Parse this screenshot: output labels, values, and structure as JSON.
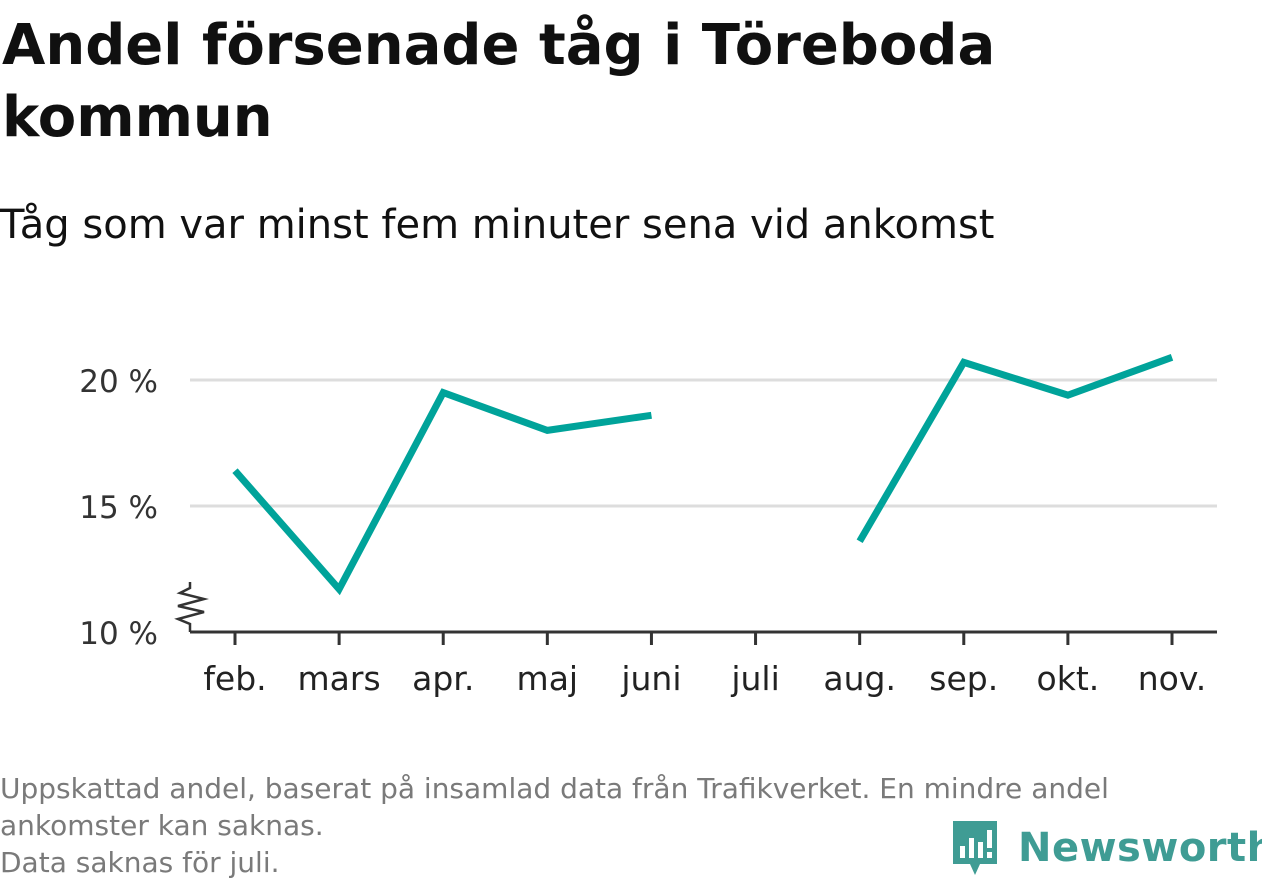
{
  "title": "Andel försenade tåg i Töreboda kommun",
  "subtitle": "Tåg som var minst fem minuter sena vid ankomst",
  "footnote": {
    "line1": "Uppskattad andel, baserat på insamlad data från Trafikverket. En mindre andel",
    "line2": "ankomster kan saknas.",
    "line3": "Data saknas för juli."
  },
  "logo": {
    "text": "Newsworthy",
    "icon": "bar-chart-speech-bubble-icon"
  },
  "colors": {
    "line": "#00a39a",
    "grid": "#dddddd",
    "axis": "#333333",
    "logo": "#3f9c94"
  },
  "chart_data": {
    "type": "line",
    "title": "Andel försenade tåg i Töreboda kommun",
    "subtitle": "Tåg som var minst fem minuter sena vid ankomst",
    "categories": [
      "feb.",
      "mars",
      "apr.",
      "maj",
      "juni",
      "juli",
      "aug.",
      "sep.",
      "okt.",
      "nov."
    ],
    "series": [
      {
        "values": [
          16.4,
          11.7,
          19.5,
          18.0,
          18.6,
          null,
          13.6,
          20.7,
          19.4,
          20.9
        ]
      }
    ],
    "yticks": [
      10,
      15,
      20
    ],
    "ytick_labels": [
      "10 %",
      "15 %",
      "20 %"
    ],
    "ylim": [
      10,
      22
    ],
    "y_axis_break": true,
    "grid": true,
    "xlabel": "",
    "ylabel": ""
  }
}
